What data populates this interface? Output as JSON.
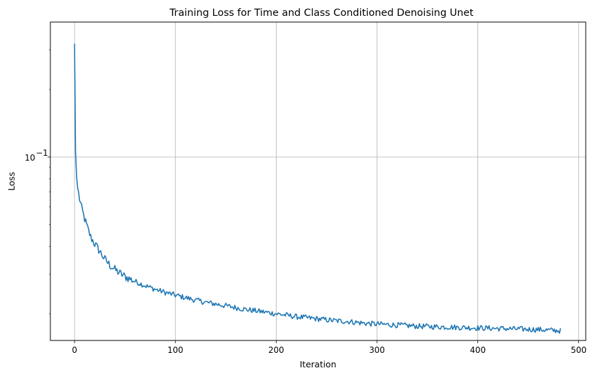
{
  "chart_data": {
    "type": "line",
    "title": "Training Loss for Time and Class Conditioned Denoising Unet",
    "xlabel": "Iteration",
    "ylabel": "Loss",
    "xlim": [
      -24,
      507
    ],
    "ylim": [
      0.0152,
      0.4
    ],
    "yscale": "log",
    "grid": true,
    "xticks": [
      0,
      100,
      200,
      300,
      400,
      500
    ],
    "xtick_labels": [
      "0",
      "100",
      "200",
      "300",
      "400",
      "500"
    ],
    "yticks": [
      0.1
    ],
    "ytick_labels": [
      "10",
      "−1"
    ],
    "series_color": "#1f77b4",
    "series": [
      {
        "anchors_x": [
          0,
          1,
          2,
          3,
          5,
          7,
          10,
          13,
          16,
          20,
          25,
          30,
          35,
          40,
          45,
          50,
          60,
          70,
          80,
          90,
          100,
          110,
          120,
          130,
          140,
          150,
          160,
          170,
          180,
          190,
          200,
          210,
          220,
          230,
          240,
          250,
          260,
          270,
          280,
          290,
          300,
          320,
          340,
          360,
          380,
          400,
          420,
          440,
          460,
          482
        ],
        "anchors_y": [
          0.32,
          0.105,
          0.082,
          0.073,
          0.065,
          0.059,
          0.053,
          0.048,
          0.044,
          0.041,
          0.038,
          0.035,
          0.033,
          0.0315,
          0.0303,
          0.0293,
          0.0279,
          0.0267,
          0.0257,
          0.0249,
          0.0242,
          0.0236,
          0.023,
          0.0225,
          0.0221,
          0.0217,
          0.0213,
          0.0209,
          0.0206,
          0.0203,
          0.02,
          0.0197,
          0.0194,
          0.0192,
          0.019,
          0.0188,
          0.0186,
          0.0185,
          0.0183,
          0.0181,
          0.018,
          0.0178,
          0.0176,
          0.0175,
          0.0174,
          0.0173,
          0.0172,
          0.0171,
          0.017,
          0.0168
        ],
        "n_points": 483
      }
    ]
  }
}
